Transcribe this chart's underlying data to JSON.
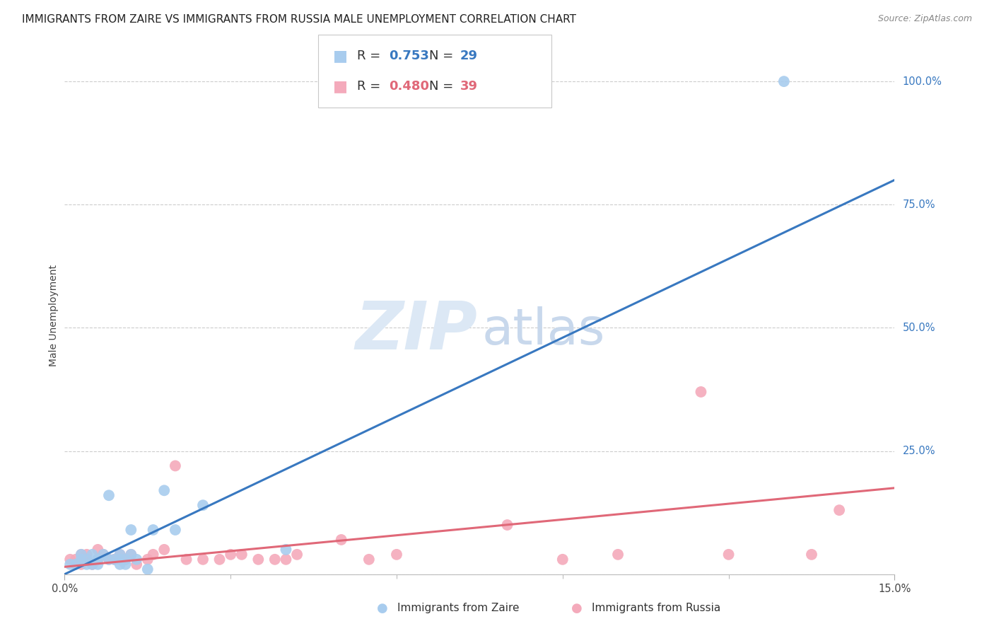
{
  "title": "IMMIGRANTS FROM ZAIRE VS IMMIGRANTS FROM RUSSIA MALE UNEMPLOYMENT CORRELATION CHART",
  "source": "Source: ZipAtlas.com",
  "ylabel": "Male Unemployment",
  "xlim": [
    0.0,
    0.15
  ],
  "ylim": [
    0.0,
    1.05
  ],
  "ytick_positions": [
    0.0,
    0.25,
    0.5,
    0.75,
    1.0
  ],
  "ytick_labels": [
    "",
    "25.0%",
    "50.0%",
    "75.0%",
    "100.0%"
  ],
  "grid_color": "#cccccc",
  "background_color": "#ffffff",
  "zaire_color": "#a8ccee",
  "russia_color": "#f4aabb",
  "zaire_line_color": "#3878c0",
  "russia_line_color": "#e06878",
  "zaire_R": "0.753",
  "zaire_N": "29",
  "russia_R": "0.480",
  "russia_N": "39",
  "zaire_x": [
    0.001,
    0.002,
    0.003,
    0.003,
    0.004,
    0.004,
    0.005,
    0.005,
    0.006,
    0.006,
    0.007,
    0.008,
    0.008,
    0.009,
    0.01,
    0.01,
    0.01,
    0.011,
    0.011,
    0.012,
    0.012,
    0.013,
    0.015,
    0.016,
    0.018,
    0.02,
    0.025,
    0.04,
    0.13
  ],
  "zaire_y": [
    0.02,
    0.02,
    0.03,
    0.04,
    0.02,
    0.03,
    0.02,
    0.04,
    0.03,
    0.02,
    0.04,
    0.16,
    0.03,
    0.03,
    0.04,
    0.02,
    0.03,
    0.02,
    0.03,
    0.09,
    0.04,
    0.03,
    0.01,
    0.09,
    0.17,
    0.09,
    0.14,
    0.05,
    1.0
  ],
  "russia_x": [
    0.001,
    0.002,
    0.003,
    0.003,
    0.004,
    0.004,
    0.005,
    0.006,
    0.006,
    0.007,
    0.008,
    0.009,
    0.01,
    0.011,
    0.012,
    0.013,
    0.015,
    0.016,
    0.018,
    0.02,
    0.022,
    0.025,
    0.028,
    0.03,
    0.032,
    0.035,
    0.038,
    0.04,
    0.042,
    0.05,
    0.055,
    0.06,
    0.08,
    0.09,
    0.1,
    0.115,
    0.12,
    0.135,
    0.14
  ],
  "russia_y": [
    0.03,
    0.03,
    0.04,
    0.02,
    0.03,
    0.04,
    0.02,
    0.03,
    0.05,
    0.04,
    0.03,
    0.03,
    0.04,
    0.03,
    0.04,
    0.02,
    0.03,
    0.04,
    0.05,
    0.22,
    0.03,
    0.03,
    0.03,
    0.04,
    0.04,
    0.03,
    0.03,
    0.03,
    0.04,
    0.07,
    0.03,
    0.04,
    0.1,
    0.03,
    0.04,
    0.37,
    0.04,
    0.04,
    0.13
  ],
  "zaire_trend_x": [
    0.0,
    0.15
  ],
  "zaire_trend_y": [
    0.0,
    0.8
  ],
  "russia_trend_x": [
    0.0,
    0.15
  ],
  "russia_trend_y": [
    0.015,
    0.175
  ],
  "title_fontsize": 11,
  "source_fontsize": 9,
  "ylabel_fontsize": 10,
  "tick_fontsize": 10.5,
  "ytick_right_fontsize": 10.5,
  "legend_fontsize": 13,
  "marker_size": 130,
  "line_width": 2.2,
  "watermark_zip_color": "#dce8f5",
  "watermark_atlas_color": "#c8d8ec"
}
